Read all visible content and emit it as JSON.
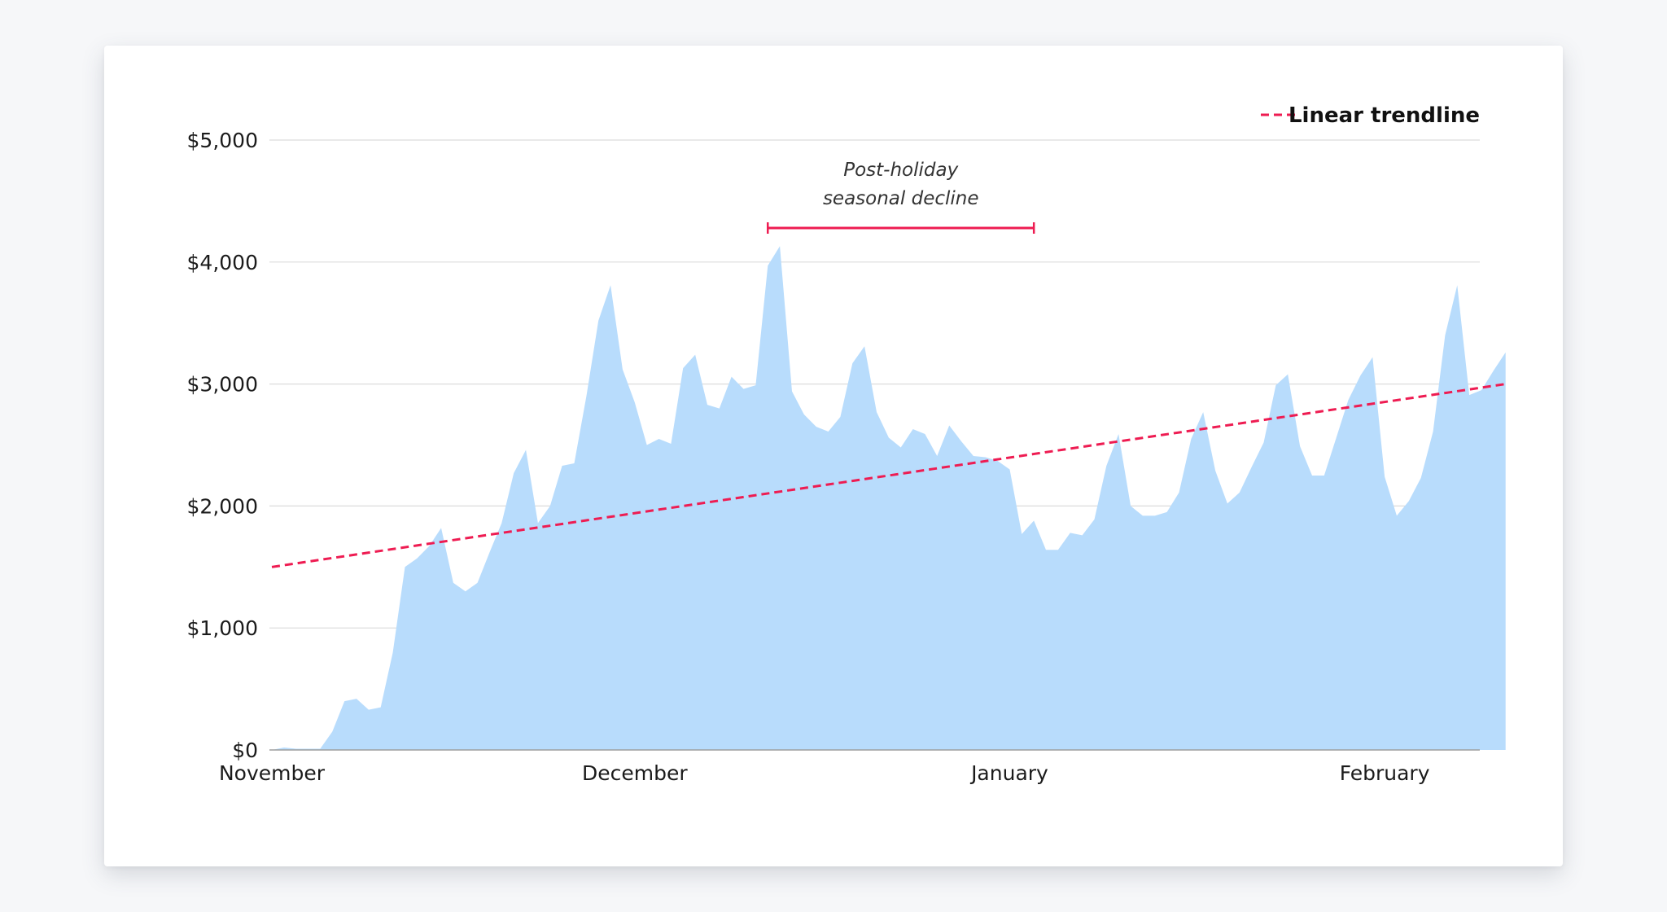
{
  "chart_data": {
    "type": "area",
    "x_start": "2023-11-01",
    "x_step_days": 1,
    "values": [
      0,
      20,
      10,
      10,
      10,
      150,
      400,
      420,
      330,
      350,
      800,
      1500,
      1570,
      1670,
      1820,
      1370,
      1300,
      1370,
      1620,
      1860,
      2270,
      2460,
      1860,
      2000,
      2330,
      2350,
      2900,
      3520,
      3810,
      3120,
      2850,
      2500,
      2550,
      2510,
      3130,
      3240,
      2830,
      2800,
      3060,
      2960,
      2990,
      3970,
      4130,
      2940,
      2750,
      2650,
      2610,
      2730,
      3170,
      3310,
      2770,
      2560,
      2480,
      2630,
      2590,
      2410,
      2660,
      2530,
      2410,
      2400,
      2370,
      2300,
      1770,
      1880,
      1640,
      1640,
      1780,
      1760,
      1890,
      2330,
      2590,
      2000,
      1920,
      1920,
      1950,
      2110,
      2550,
      2770,
      2290,
      2020,
      2110,
      2320,
      2520,
      2990,
      3080,
      2490,
      2250,
      2250,
      2560,
      2870,
      3070,
      3220,
      2240,
      1920,
      2040,
      2230,
      2610,
      3400,
      3810,
      2910,
      2950,
      3110,
      3260
    ],
    "ylim": [
      0,
      5000
    ],
    "y_ticks": [
      {
        "value": 0,
        "label": "$0"
      },
      {
        "value": 1000,
        "label": "$1,000"
      },
      {
        "value": 2000,
        "label": "$2,000"
      },
      {
        "value": 3000,
        "label": "$3,000"
      },
      {
        "value": 4000,
        "label": "$4,000"
      },
      {
        "value": 5000,
        "label": "$5,000"
      }
    ],
    "x_ticks": [
      {
        "date": "2023-11-01",
        "label": "November"
      },
      {
        "date": "2023-12-01",
        "label": "December"
      },
      {
        "date": "2024-01-01",
        "label": "January"
      },
      {
        "date": "2024-02-01",
        "label": "February"
      }
    ],
    "trendline": {
      "name": "Linear trendline",
      "start": {
        "date": "2023-11-01",
        "value": 1500
      },
      "end": {
        "date": "2024-02-11",
        "value": 3000
      },
      "color": "#ee1c52",
      "style": "dashed"
    },
    "annotation": {
      "lines": [
        "Post-holiday",
        "seasonal decline"
      ],
      "x_start": "2023-12-12",
      "x_end": "2024-01-03",
      "color": "#ee1c52"
    },
    "area_color": "#b8dcfc",
    "grid": true,
    "legend_position": "top-right"
  }
}
